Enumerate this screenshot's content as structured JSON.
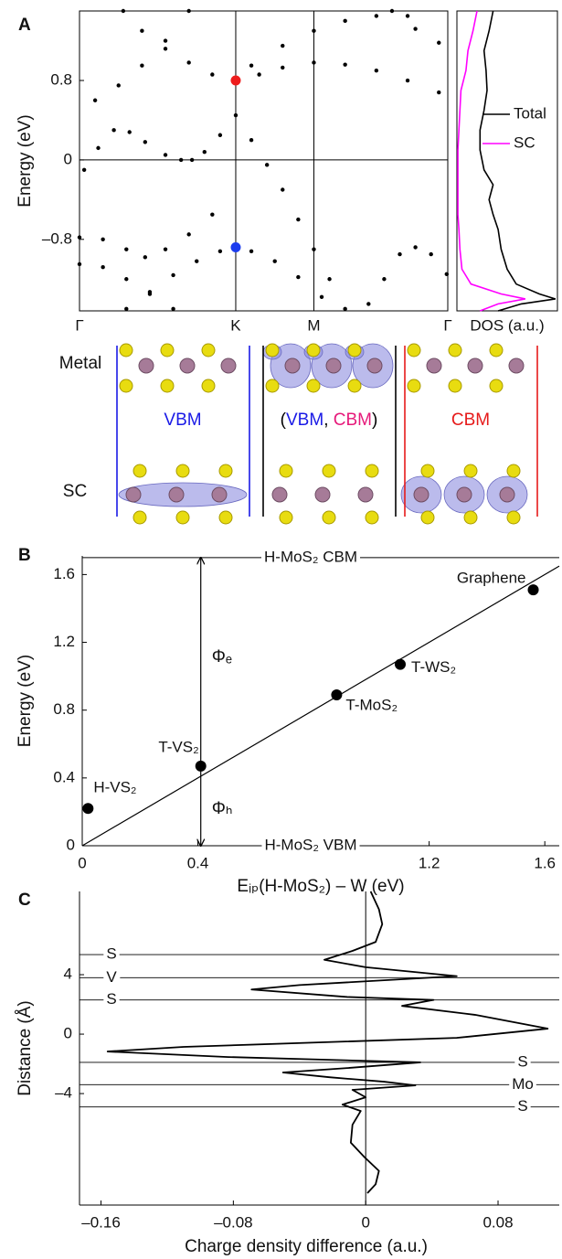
{
  "panels": [
    "A",
    "B",
    "C"
  ],
  "chart_data": [
    {
      "type": "scatter",
      "ylabel": "Energy (eV)",
      "xlim": [
        0,
        2.357
      ],
      "xticks": [
        {
          "value": 0,
          "label": "Γ"
        },
        {
          "value": 1,
          "label": "K"
        },
        {
          "value": 1.5,
          "label": "M"
        },
        {
          "value": 2.357,
          "label": "Γ"
        }
      ],
      "ylim": [
        -1.52,
        1.5
      ],
      "yticks": [
        0.8,
        0,
        {
          "value": -0.8,
          "label": "–0.8"
        }
      ],
      "xgrid": true,
      "zero_line": true,
      "series": [
        {
          "color": "#000000",
          "x": [
            0.28,
            0.4,
            0.55,
            0.7,
            0.85,
            1.15,
            1.3,
            1.5,
            1.7,
            1.9,
            2.1,
            2.3
          ],
          "values": [
            1.5,
            1.3,
            1.12,
            0.98,
            0.86,
            0.86,
            0.93,
            0.98,
            0.96,
            0.9,
            0.8,
            0.68
          ]
        },
        {
          "color": "#000000",
          "x": [
            1.1,
            1.3,
            1.5,
            1.7,
            1.9,
            2.1
          ],
          "values": [
            0.95,
            1.15,
            1.3,
            1.4,
            1.45,
            1.45
          ]
        },
        {
          "color": "#000000",
          "x": [
            0.03,
            0.12,
            0.22,
            0.32,
            0.42,
            0.55,
            0.65,
            0.72,
            0.8,
            0.9
          ],
          "values": [
            -0.1,
            0.12,
            0.3,
            0.28,
            0.18,
            0.05,
            0.0,
            0.0,
            0.08,
            0.25
          ]
        },
        {
          "color": "#000000",
          "x": [
            1.0,
            1.1,
            1.2,
            1.3,
            1.4,
            1.5,
            1.6,
            1.7
          ],
          "values": [
            0.45,
            0.2,
            -0.05,
            -0.3,
            -0.6,
            -0.9,
            -1.2,
            -1.5
          ]
        },
        {
          "color": "#000000",
          "x": [
            0.3,
            0.45,
            0.6,
            0.75,
            0.9,
            1.1,
            1.25,
            1.4,
            1.55
          ],
          "values": [
            -1.5,
            -1.33,
            -1.16,
            -1.02,
            -0.92,
            -0.92,
            -1.02,
            -1.18,
            -1.38
          ]
        },
        {
          "color": "#000000",
          "x": [
            0,
            0.15,
            0.3,
            0.42,
            0.55,
            0.7,
            0.85
          ],
          "values": [
            -0.78,
            -0.8,
            -0.9,
            -0.98,
            -0.9,
            -0.75,
            -0.55
          ]
        },
        {
          "color": "#000000",
          "x": [
            0,
            0.15,
            0.3,
            0.45,
            0.6
          ],
          "values": [
            -1.05,
            -1.08,
            -1.2,
            -1.35,
            -1.5
          ]
        },
        {
          "color": "#000000",
          "x": [
            1.85,
            1.95,
            2.05,
            2.15,
            2.25,
            2.35
          ],
          "values": [
            -1.45,
            -1.2,
            -0.95,
            -0.88,
            -0.95,
            -1.15
          ]
        },
        {
          "color": "#000000",
          "x": [
            0.1,
            0.25,
            0.4,
            0.55,
            0.7
          ],
          "values": [
            0.6,
            0.75,
            0.95,
            1.2,
            1.5
          ]
        },
        {
          "color": "#000000",
          "x": [
            2.0,
            2.15,
            2.3
          ],
          "values": [
            1.5,
            1.32,
            1.18
          ]
        },
        {
          "color": "#ee1c1c",
          "highlight": true,
          "x": [
            1.0
          ],
          "values": [
            0.8
          ]
        },
        {
          "color": "#1c3cee",
          "highlight": true,
          "x": [
            1.0
          ],
          "values": [
            -0.88
          ]
        }
      ]
    },
    {
      "type": "line",
      "xlabel": "DOS (a.u.)",
      "xlim": [
        0,
        1
      ],
      "ylim": [
        -1.52,
        1.5
      ],
      "legend": "right",
      "y": [
        1.5,
        1.3,
        1.1,
        0.9,
        0.7,
        0.5,
        0.3,
        0.1,
        -0.1,
        -0.25,
        -0.4,
        -0.55,
        -0.7,
        -0.9,
        -1.1,
        -1.25,
        -1.35,
        -1.4,
        -1.45,
        -1.52
      ],
      "series": [
        {
          "name": "Total",
          "color": "#000000",
          "values": [
            0.36,
            0.32,
            0.27,
            0.29,
            0.3,
            0.27,
            0.23,
            0.23,
            0.27,
            0.36,
            0.32,
            0.36,
            0.41,
            0.44,
            0.5,
            0.59,
            0.82,
            0.98,
            0.64,
            0.41
          ]
        },
        {
          "name": "SC",
          "color": "#ff00ff",
          "values": [
            0.2,
            0.16,
            0.11,
            0.09,
            0.04,
            0.03,
            0.02,
            0.01,
            0.01,
            0.01,
            0.01,
            0.01,
            0.02,
            0.03,
            0.05,
            0.14,
            0.44,
            0.68,
            0.41,
            0.23
          ]
        }
      ]
    },
    {
      "type": "scatter",
      "xlabel": "Eᵢₚ(H-MoS₂) – W (eV)",
      "ylabel": "Energy (eV)",
      "xlim": [
        0,
        1.65
      ],
      "xticks": [
        0,
        0.4,
        1.2,
        1.6
      ],
      "ylim": [
        0,
        1.71
      ],
      "yticks": [
        0,
        0.4,
        0.8,
        1.2,
        1.6
      ],
      "labels": [
        "H-VS₂",
        "T-VS₂",
        "T-MoS₂",
        "T-WS₂",
        "Graphene"
      ],
      "series": [
        {
          "color": "#000000",
          "x": [
            0.02,
            0.41,
            0.88,
            1.1,
            1.56
          ],
          "values": [
            0.22,
            0.47,
            0.89,
            1.07,
            1.51
          ]
        }
      ],
      "fit": {
        "x": [
          0,
          1.65
        ],
        "values": [
          0,
          1.65
        ]
      },
      "levels": [
        {
          "label": "H-MoS₂ CBM",
          "value": 1.7
        },
        {
          "label": "H-MoS₂ VBM",
          "value": 0
        }
      ],
      "annotations": [
        "Φₑ",
        "Φₕ"
      ]
    },
    {
      "type": "line",
      "xlabel": "Charge density difference (a.u.)",
      "ylabel": "Distance (Å)",
      "xlim": [
        -0.173,
        0.117
      ],
      "xticks": [
        {
          "value": -0.16,
          "label": "–0.16"
        },
        {
          "value": -0.08,
          "label": "–0.08"
        },
        0,
        0.08
      ],
      "ylim": [
        -11.5,
        9.6
      ],
      "yticks": [
        4,
        0,
        {
          "value": -4,
          "label": "–4"
        }
      ],
      "y": [
        9.6,
        8.4,
        7.4,
        6.2,
        5.6,
        5.0,
        4.5,
        3.9,
        3.3,
        3.0,
        2.5,
        2.3,
        1.9,
        1.3,
        0.37,
        -0.25,
        -0.86,
        -1.17,
        -1.54,
        -1.9,
        -2.28,
        -2.58,
        -2.9,
        -3.2,
        -3.45,
        -3.75,
        -4.25,
        -4.74,
        -5.17,
        -6.1,
        -7.3,
        -8.25,
        -9.2,
        -10.1,
        -10.7
      ],
      "values": [
        0.003,
        0.008,
        0.01,
        0.006,
        -0.008,
        -0.025,
        0,
        0.055,
        -0.04,
        -0.069,
        -0.011,
        0.041,
        0.022,
        0.066,
        0.11,
        0.055,
        -0.11,
        -0.156,
        -0.083,
        0.033,
        -0.011,
        -0.05,
        -0.022,
        0.011,
        0.03,
        -0.008,
        0,
        -0.014,
        -0.003,
        -0.008,
        -0.009,
        -0.001,
        0.008,
        0.006,
        0.001
      ],
      "color": "#000000",
      "layers": [
        {
          "label": "S",
          "value": 5.35
        },
        {
          "label": "V",
          "value": 3.8
        },
        {
          "label": "S",
          "value": 2.3
        },
        {
          "label": "S",
          "value": -1.9
        },
        {
          "label": "Mo",
          "value": -3.4
        },
        {
          "label": "S",
          "value": -4.9
        }
      ]
    }
  ],
  "structure": {
    "rows": [
      "Metal",
      "SC"
    ],
    "left": "VBM",
    "middle": [
      "(",
      "VBM",
      ", ",
      "CBM",
      ")"
    ],
    "right": "CBM"
  }
}
